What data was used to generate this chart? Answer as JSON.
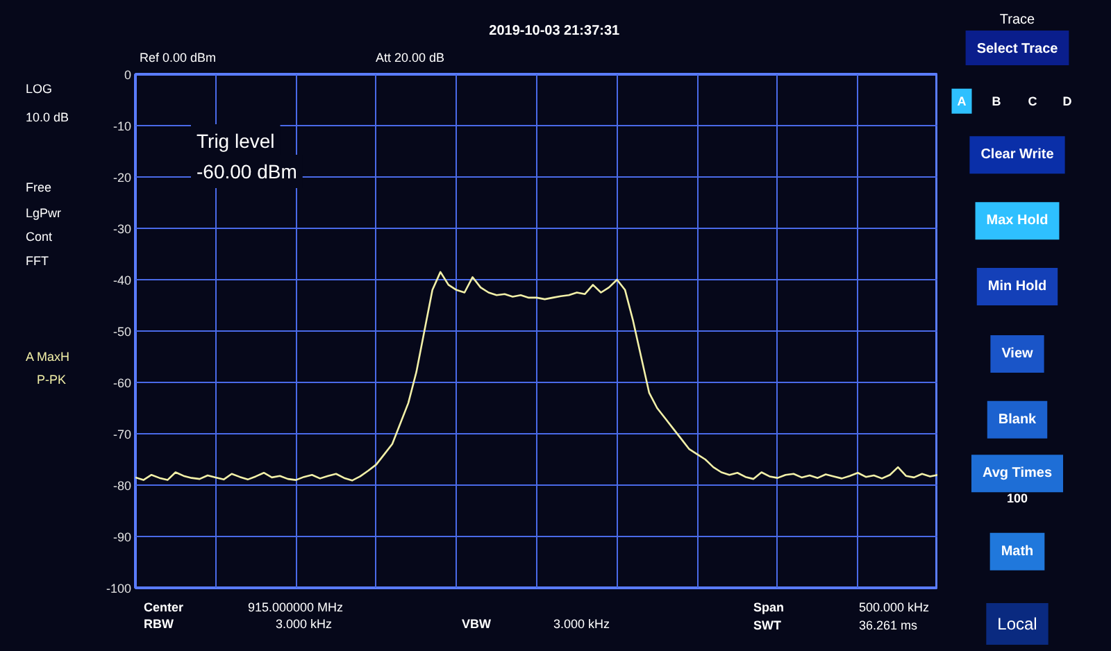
{
  "chart_data": {
    "type": "line",
    "categories": [
      null,
      null,
      null,
      null,
      null,
      null,
      null,
      null,
      null,
      null,
      null,
      null,
      null,
      null,
      null,
      null,
      null,
      null,
      null,
      null,
      null,
      null,
      null,
      null,
      null,
      null,
      null,
      null,
      null,
      null,
      null,
      null,
      null,
      null,
      null,
      null,
      null,
      null,
      null,
      null,
      null,
      null,
      null,
      null,
      null,
      null,
      null,
      null,
      null,
      null,
      null,
      null,
      null,
      null,
      null,
      null,
      null,
      null,
      null,
      null,
      null,
      null,
      null,
      null,
      null,
      null,
      null,
      null,
      null,
      null,
      null,
      null,
      null,
      null,
      null,
      null,
      null,
      null,
      null,
      null,
      null,
      null,
      null,
      null,
      null,
      null,
      null,
      null,
      null,
      null,
      null,
      null,
      null,
      null,
      null,
      null,
      null,
      null,
      null,
      null,
      null
    ],
    "series": [
      {
        "color": "#f2f0a8",
        "values": [
          -78.5,
          -79,
          -78,
          -78.6,
          -79,
          -77.5,
          -78.2,
          -78.6,
          -78.8,
          -78.1,
          -78.5,
          -78.9,
          -77.8,
          -78.4,
          -78.9,
          -78.3,
          -77.6,
          -78.5,
          -78.2,
          -78.8,
          -79,
          -78.4,
          -78,
          -78.7,
          -78.2,
          -77.8,
          -78.6,
          -79.1,
          -78.3,
          -77.2,
          -76,
          -74,
          -72,
          -68,
          -64,
          -58,
          -50,
          -42,
          -38.5,
          -41,
          -42,
          -42.5,
          -39.5,
          -41.5,
          -42.5,
          -43,
          -42.8,
          -43.3,
          -43,
          -43.5,
          -43.5,
          -43.8,
          -43.5,
          -43.2,
          -43,
          -42.5,
          -42.8,
          -41,
          -42.5,
          -41.5,
          -40,
          -42,
          -48,
          -55,
          -62,
          -65,
          -67,
          -69,
          -71,
          -73,
          -74,
          -75,
          -76.5,
          -77.5,
          -78,
          -77.6,
          -78.4,
          -78.8,
          -77.5,
          -78.3,
          -78.6,
          -78,
          -77.8,
          -78.5,
          -78.1,
          -78.6,
          -77.9,
          -78.3,
          -78.7,
          -78.2,
          -77.6,
          -78.4,
          -78.1,
          -78.7,
          -78,
          -76.5,
          -78.2,
          -78.5,
          -77.8,
          -78.3,
          -78
        ]
      }
    ],
    "ylim": [
      -100,
      0
    ],
    "yticks": [
      0,
      -10,
      -20,
      -30,
      -40,
      -50,
      -60,
      -70,
      -80,
      -90,
      -100
    ],
    "grid": true,
    "annotations": [
      "2019-10-03  21:37:31",
      "Ref  0.00 dBm",
      "Att  20.00 dB",
      "LOG",
      "10.0 dB",
      "Free",
      "LgPwr",
      "Cont",
      "FFT",
      "A  MaxH",
      "P-PK",
      "Trig level",
      "-60.00 dBm",
      "Center",
      "915.000000 MHz",
      "RBW",
      "3.000 kHz",
      "VBW",
      "3.000 kHz",
      "Span",
      "500.000 kHz",
      "SWT",
      "36.261 ms",
      "Trace",
      "Select Trace",
      "A",
      "B",
      "C",
      "D",
      "Clear Write",
      "Max Hold",
      "Min Hold",
      "View",
      "Blank",
      "Avg Times",
      "100",
      "Math",
      "Local"
    ]
  }
}
